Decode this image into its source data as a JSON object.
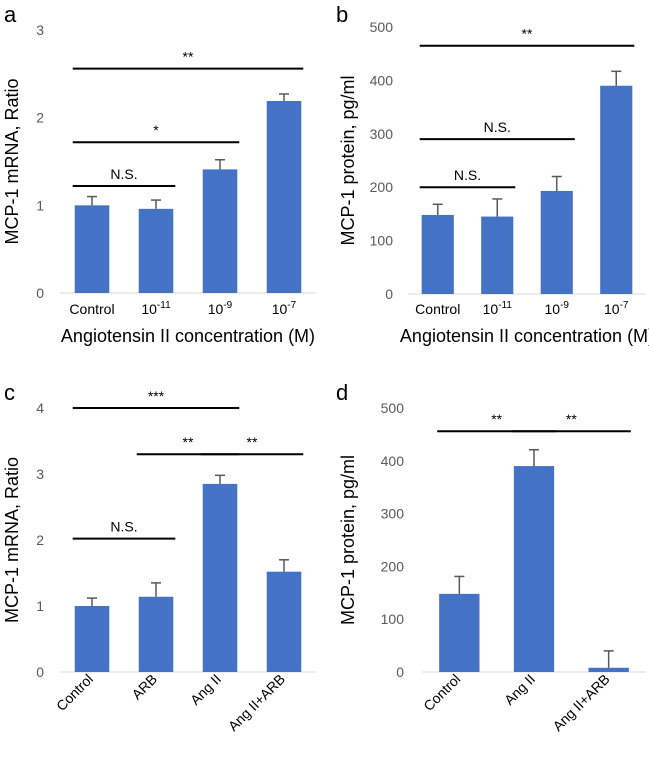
{
  "colors": {
    "bar": "#4472c4",
    "error": "#595959",
    "axis": "#d9d9d9",
    "text": "#000000"
  },
  "chart_data": [
    {
      "panel": "a",
      "type": "bar",
      "categories": [
        "Control",
        "10",
        "10",
        "10"
      ],
      "category_superscripts": [
        "",
        "-11",
        "-9",
        "-7"
      ],
      "values": [
        1.0,
        0.96,
        1.41,
        2.19
      ],
      "errors": [
        0.1,
        0.1,
        0.11,
        0.08
      ],
      "ylabel": "MCP-1 mRNA, Ratio",
      "xlabel": "Angiotensin II concentration (M)",
      "ylim": [
        0,
        3
      ],
      "yticks": [
        "0",
        "1",
        "2",
        "3"
      ],
      "tick_values": [
        0,
        1,
        2,
        3
      ],
      "significance": [
        {
          "from": 0,
          "to": 1,
          "label": "N.S.",
          "y": 1.22
        },
        {
          "from": 0,
          "to": 2,
          "label": "*",
          "y": 1.72
        },
        {
          "from": 0,
          "to": 3,
          "label": "**",
          "y": 2.56
        }
      ]
    },
    {
      "panel": "b",
      "type": "bar",
      "categories": [
        "Control",
        "10",
        "10",
        "10"
      ],
      "category_superscripts": [
        "",
        "-11",
        "-9",
        "-7"
      ],
      "values": [
        148,
        145,
        193,
        390
      ],
      "errors": [
        20,
        33,
        27,
        27
      ],
      "ylabel": "MCP-1 protein, pg/ml",
      "xlabel": "Angiotensin II concentration (M)",
      "ylim": [
        0,
        500
      ],
      "yticks": [
        "0",
        "100",
        "200",
        "300",
        "400",
        "500"
      ],
      "tick_values": [
        0,
        100,
        200,
        300,
        400,
        500
      ],
      "significance": [
        {
          "from": 0,
          "to": 1,
          "label": "N.S.",
          "y": 200
        },
        {
          "from": 0,
          "to": 2,
          "label": "N.S.",
          "y": 290
        },
        {
          "from": 0,
          "to": 3,
          "label": "**",
          "y": 465
        }
      ]
    },
    {
      "panel": "c",
      "type": "bar",
      "categories": [
        "Control",
        "ARB",
        "Ang II",
        "Ang II+ARB"
      ],
      "category_superscripts": [
        "",
        "",
        "",
        ""
      ],
      "rotated_labels": true,
      "values": [
        1.0,
        1.14,
        2.85,
        1.52
      ],
      "errors": [
        0.12,
        0.21,
        0.13,
        0.18
      ],
      "ylabel": "MCP-1 mRNA, Ratio",
      "xlabel": "",
      "ylim": [
        0,
        4
      ],
      "yticks": [
        "0",
        "1",
        "2",
        "3",
        "4"
      ],
      "tick_values": [
        0,
        1,
        2,
        3,
        4
      ],
      "significance": [
        {
          "from": 0,
          "to": 1,
          "label": "N.S.",
          "y": 2.02
        },
        {
          "from": 1,
          "to": 2,
          "label": "**",
          "y": 3.3
        },
        {
          "from": 2,
          "to": 3,
          "label": "**",
          "y": 3.3
        },
        {
          "from": 0,
          "to": 2,
          "label": "***",
          "y": 4.0
        }
      ]
    },
    {
      "panel": "d",
      "type": "bar",
      "categories": [
        "Control",
        "Ang II",
        "Ang II+ARB"
      ],
      "category_superscripts": [
        "",
        "",
        ""
      ],
      "rotated_labels": true,
      "values": [
        148,
        390,
        8
      ],
      "errors": [
        33,
        31,
        32
      ],
      "ylabel": "MCP-1 protein, pg/ml",
      "xlabel": "",
      "ylim": [
        0,
        500
      ],
      "yticks": [
        "0",
        "100",
        "200",
        "300",
        "400",
        "500"
      ],
      "tick_values": [
        0,
        100,
        200,
        300,
        400,
        500
      ],
      "significance": [
        {
          "from": 0,
          "to": 1,
          "label": "**",
          "y": 456
        },
        {
          "from": 1,
          "to": 2,
          "label": "**",
          "y": 456
        }
      ]
    }
  ]
}
